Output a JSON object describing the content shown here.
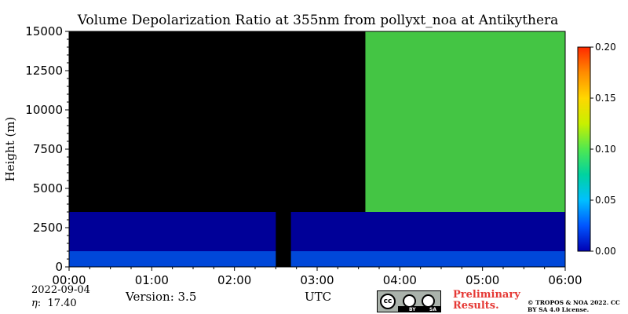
{
  "chart_data": {
    "type": "heatmap",
    "title": "Volume Depolarization Ratio at 355nm from pollyxt_noa at Antikythera",
    "xlabel": "UTC",
    "ylabel": "Height (m)",
    "x_ticks": [
      "00:00",
      "01:00",
      "02:00",
      "03:00",
      "04:00",
      "05:00",
      "06:00"
    ],
    "xlim": [
      "00:00",
      "06:00"
    ],
    "y_ticks": [
      0,
      2500,
      5000,
      7500,
      10000,
      12500,
      15000
    ],
    "ylim": [
      0,
      15000
    ],
    "colorbar": {
      "ticks": [
        "0.00",
        "0.05",
        "0.10",
        "0.15",
        "0.20"
      ],
      "range": [
        0.0,
        0.2
      ],
      "colors": [
        "#0000b3",
        "#0055ff",
        "#00c0ff",
        "#00d2a0",
        "#50e850",
        "#c8f000",
        "#ffd700",
        "#ff8c00",
        "#ff2a00"
      ]
    },
    "background_color": "#000000",
    "regions": [
      {
        "x_start": "00:00",
        "x_end": "06:00",
        "height_start": 0,
        "height_end": 1000,
        "value": 0.02
      },
      {
        "x_start": "00:00",
        "x_end": "06:00",
        "height_start": 1000,
        "height_end": 3500,
        "value": 0.01
      },
      {
        "x_start": "03:35",
        "x_end": "06:00",
        "height_start": 3500,
        "height_end": 15000,
        "value": 0.1
      }
    ],
    "missing_data": [
      {
        "x_start": "02:30",
        "x_end": "02:41",
        "height_start": 0,
        "height_end": 15000
      }
    ]
  },
  "footer": {
    "date": "2022-09-04",
    "eta": "17.40",
    "version": "Version: 3.5",
    "license_badge": {
      "cc": "cc",
      "by": "BY",
      "sa": "SA"
    },
    "preliminary": "Preliminary Results.",
    "copyright": "© TROPOS & NOA 2022. CC BY SA 4.0 License."
  }
}
